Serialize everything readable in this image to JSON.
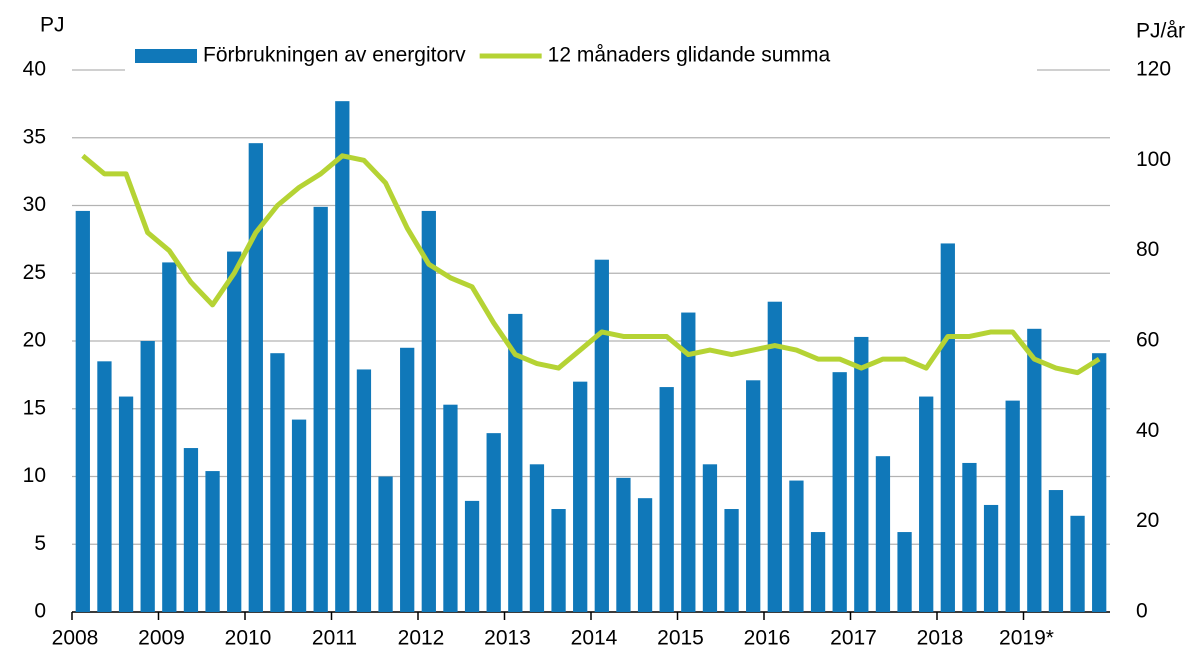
{
  "chart_data": {
    "type": "bar_line",
    "y_label": "PJ",
    "y2_label": "PJ/år",
    "categories": [
      "2008",
      null,
      null,
      null,
      "2009",
      null,
      null,
      null,
      "2010",
      null,
      null,
      null,
      "2011",
      null,
      null,
      null,
      "2012",
      null,
      null,
      null,
      "2013",
      null,
      null,
      null,
      "2014",
      null,
      null,
      null,
      "2015",
      null,
      null,
      null,
      "2016",
      null,
      null,
      null,
      "2017",
      null,
      null,
      null,
      "2018",
      null,
      null,
      null,
      "2019*",
      null,
      null,
      null
    ],
    "series": [
      {
        "name": "Förbrukningen av energitorv",
        "type": "bar",
        "color": "#1078b9",
        "values": [
          29.6,
          18.5,
          15.9,
          20.0,
          25.8,
          12.1,
          10.4,
          26.6,
          34.6,
          19.1,
          14.2,
          29.9,
          37.7,
          17.9,
          10.0,
          19.5,
          29.6,
          15.3,
          8.2,
          13.2,
          22.0,
          10.9,
          7.6,
          17.0,
          26.0,
          9.9,
          8.4,
          16.6,
          22.1,
          10.9,
          7.6,
          17.1,
          22.9,
          9.7,
          5.9,
          17.7,
          20.3,
          11.5,
          5.9,
          15.9,
          27.2,
          11.0,
          7.9,
          15.6,
          20.9,
          9.0,
          7.1,
          19.1
        ]
      },
      {
        "name": "12 månaders glidande summa",
        "type": "line",
        "axis": "y2",
        "color": "#b5d334",
        "values": [
          101,
          97,
          97,
          84,
          80,
          73,
          68,
          75,
          84,
          90,
          94,
          97,
          101,
          100,
          95,
          85,
          77,
          74,
          72,
          64,
          57,
          55,
          54,
          58,
          62,
          61,
          61,
          61,
          57,
          58,
          57,
          58,
          59,
          58,
          56,
          56,
          54,
          56,
          56,
          54,
          61,
          61,
          62,
          62,
          56,
          54,
          53,
          56
        ]
      }
    ],
    "ylim": [
      0,
      40
    ],
    "yticks": [
      0,
      5,
      10,
      15,
      20,
      25,
      30,
      35,
      40
    ],
    "y2lim": [
      0,
      120
    ],
    "y2ticks": [
      0,
      20,
      40,
      60,
      80,
      100,
      120
    ],
    "grid": true,
    "legend": "top"
  }
}
